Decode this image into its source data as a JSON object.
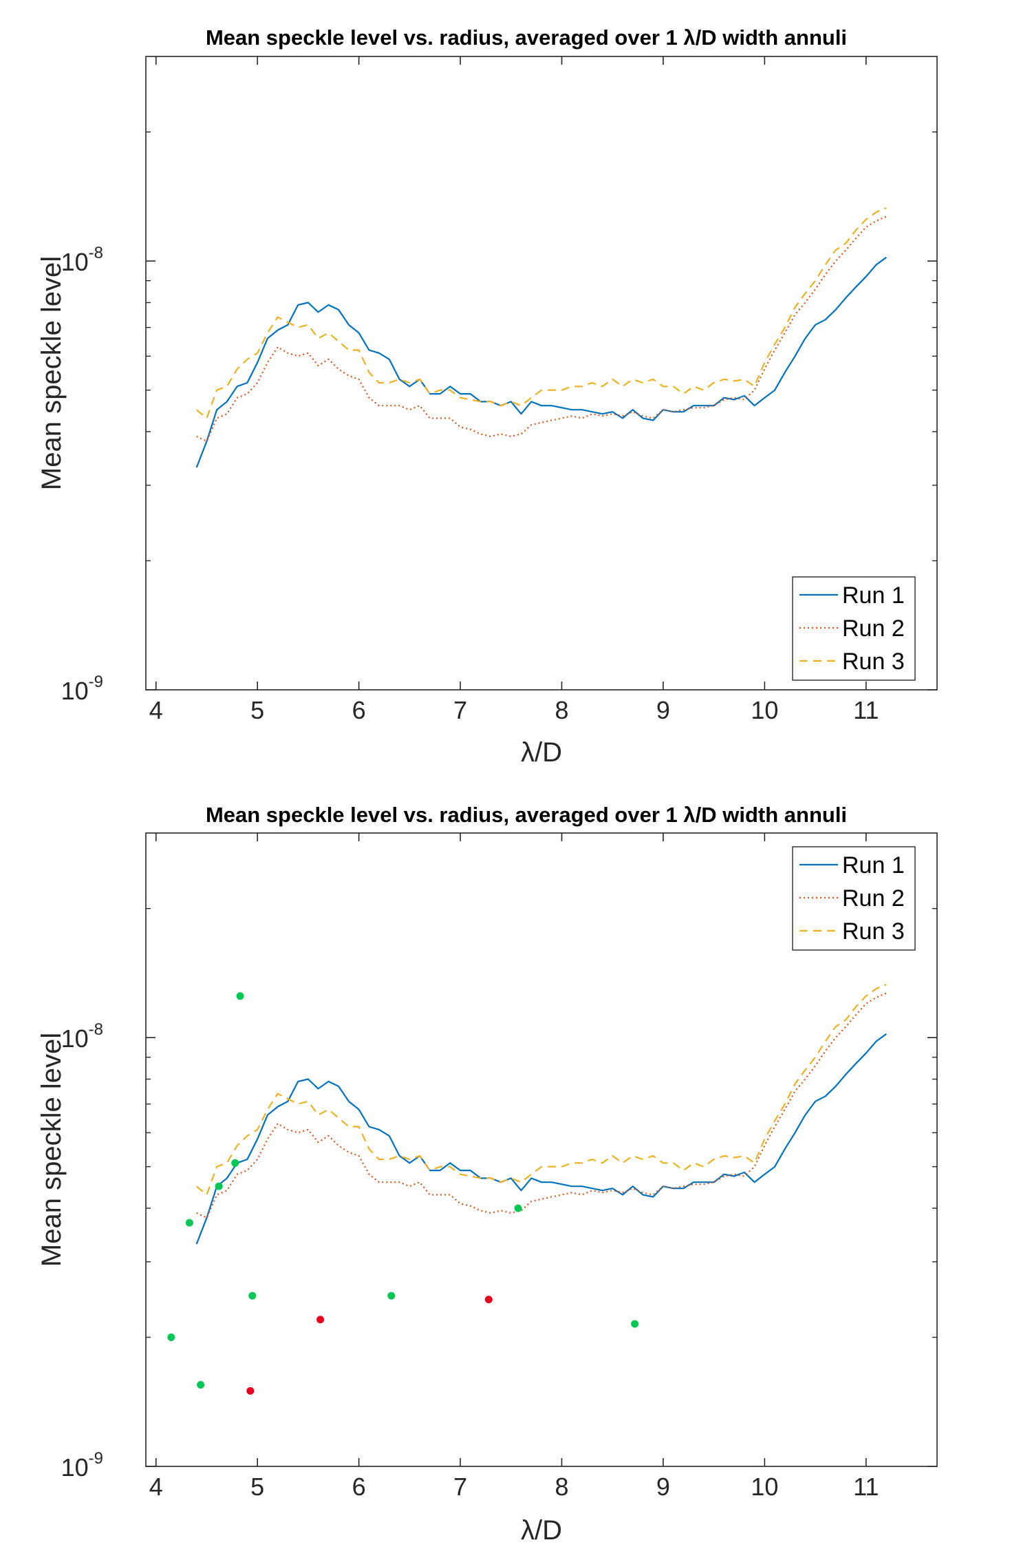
{
  "colors": {
    "run1": "#0072BD",
    "run2": "#D95319",
    "run3": "#EDB120",
    "dot_green": "#00C853",
    "dot_red": "#E8001C",
    "axis": "#262626"
  },
  "chart_data": [
    {
      "type": "line",
      "title": "Mean speckle level vs. radius, averaged over 1 λ/D width annuli",
      "xlabel": "λ/D",
      "ylabel": "Mean speckle level",
      "xlim": [
        3.9,
        11.7
      ],
      "ylim": [
        1e-09,
        3e-08
      ],
      "yscale": "log",
      "xticks": [
        4,
        5,
        6,
        7,
        8,
        9,
        10,
        11
      ],
      "xtick_labels": [
        "4",
        "5",
        "6",
        "7",
        "8",
        "9",
        "10",
        "11"
      ],
      "ytick_labels": [
        {
          "base": "10",
          "exp": "-9",
          "value": 1e-09
        },
        {
          "base": "10",
          "exp": "-8",
          "value": 1e-08
        }
      ],
      "legend_loc": "bottom-right",
      "series": [
        {
          "name": "Run 1",
          "style": "solid",
          "x": [
            4.4,
            4.5,
            4.6,
            4.7,
            4.8,
            4.9,
            5.0,
            5.1,
            5.2,
            5.3,
            5.4,
            5.5,
            5.6,
            5.7,
            5.8,
            5.9,
            6.0,
            6.1,
            6.2,
            6.3,
            6.4,
            6.5,
            6.6,
            6.7,
            6.8,
            6.9,
            7.0,
            7.1,
            7.2,
            7.3,
            7.4,
            7.5,
            7.6,
            7.7,
            7.8,
            7.9,
            8.0,
            8.1,
            8.2,
            8.3,
            8.4,
            8.5,
            8.6,
            8.7,
            8.8,
            8.9,
            9.0,
            9.1,
            9.2,
            9.3,
            9.4,
            9.5,
            9.6,
            9.7,
            9.8,
            9.9,
            10.0,
            10.1,
            10.2,
            10.3,
            10.4,
            10.5,
            10.6,
            10.7,
            10.8,
            10.9,
            11.0,
            11.1,
            11.2
          ],
          "y": [
            3.3e-09,
            3.8e-09,
            4.5e-09,
            4.7e-09,
            5.1e-09,
            5.2e-09,
            5.8e-09,
            6.6e-09,
            6.9e-09,
            7.1e-09,
            7.9e-09,
            8e-09,
            7.6e-09,
            7.9e-09,
            7.7e-09,
            7.1e-09,
            6.8e-09,
            6.2e-09,
            6.1e-09,
            5.9e-09,
            5.3e-09,
            5.1e-09,
            5.3e-09,
            4.9e-09,
            4.9e-09,
            5.1e-09,
            4.9e-09,
            4.9e-09,
            4.7e-09,
            4.7e-09,
            4.6e-09,
            4.7e-09,
            4.4e-09,
            4.7e-09,
            4.6e-09,
            4.6e-09,
            4.55e-09,
            4.5e-09,
            4.5e-09,
            4.45e-09,
            4.4e-09,
            4.45e-09,
            4.3e-09,
            4.5e-09,
            4.3e-09,
            4.25e-09,
            4.5e-09,
            4.45e-09,
            4.45e-09,
            4.6e-09,
            4.6e-09,
            4.6e-09,
            4.8e-09,
            4.75e-09,
            4.85e-09,
            4.6e-09,
            4.8e-09,
            5e-09,
            5.5e-09,
            6e-09,
            6.6e-09,
            7.1e-09,
            7.3e-09,
            7.7e-09,
            8.2e-09,
            8.7e-09,
            9.2e-09,
            9.8e-09,
            1.02e-08
          ]
        },
        {
          "name": "Run 2",
          "style": "dotted",
          "x": [
            4.4,
            4.5,
            4.6,
            4.7,
            4.8,
            4.9,
            5.0,
            5.1,
            5.2,
            5.3,
            5.4,
            5.5,
            5.6,
            5.7,
            5.8,
            5.9,
            6.0,
            6.1,
            6.2,
            6.3,
            6.4,
            6.5,
            6.6,
            6.7,
            6.8,
            6.9,
            7.0,
            7.1,
            7.2,
            7.3,
            7.4,
            7.5,
            7.6,
            7.7,
            7.8,
            7.9,
            8.0,
            8.1,
            8.2,
            8.3,
            8.4,
            8.5,
            8.6,
            8.7,
            8.8,
            8.9,
            9.0,
            9.1,
            9.2,
            9.3,
            9.4,
            9.5,
            9.6,
            9.7,
            9.8,
            9.9,
            10.0,
            10.1,
            10.2,
            10.3,
            10.4,
            10.5,
            10.6,
            10.7,
            10.8,
            10.9,
            11.0,
            11.1,
            11.2
          ],
          "y": [
            3.9e-09,
            3.8e-09,
            4.3e-09,
            4.4e-09,
            4.8e-09,
            4.9e-09,
            5.2e-09,
            5.8e-09,
            6.3e-09,
            6.1e-09,
            6e-09,
            6.1e-09,
            5.7e-09,
            5.9e-09,
            5.6e-09,
            5.4e-09,
            5.3e-09,
            4.8e-09,
            4.6e-09,
            4.6e-09,
            4.6e-09,
            4.5e-09,
            4.6e-09,
            4.3e-09,
            4.3e-09,
            4.3e-09,
            4.1e-09,
            4.05e-09,
            3.95e-09,
            3.9e-09,
            3.95e-09,
            3.9e-09,
            3.95e-09,
            4.15e-09,
            4.2e-09,
            4.25e-09,
            4.3e-09,
            4.35e-09,
            4.3e-09,
            4.4e-09,
            4.35e-09,
            4.4e-09,
            4.35e-09,
            4.45e-09,
            4.35e-09,
            4.3e-09,
            4.5e-09,
            4.45e-09,
            4.5e-09,
            4.55e-09,
            4.55e-09,
            4.6e-09,
            4.75e-09,
            4.8e-09,
            4.75e-09,
            5e-09,
            5.6e-09,
            6.2e-09,
            6.8e-09,
            7.5e-09,
            8e-09,
            8.6e-09,
            9.3e-09,
            1e-08,
            1.06e-08,
            1.13e-08,
            1.2e-08,
            1.24e-08,
            1.27e-08
          ]
        },
        {
          "name": "Run 3",
          "style": "dashed",
          "x": [
            4.4,
            4.5,
            4.6,
            4.7,
            4.8,
            4.9,
            5.0,
            5.1,
            5.2,
            5.3,
            5.4,
            5.5,
            5.6,
            5.7,
            5.8,
            5.9,
            6.0,
            6.1,
            6.2,
            6.3,
            6.4,
            6.5,
            6.6,
            6.7,
            6.8,
            6.9,
            7.0,
            7.1,
            7.2,
            7.3,
            7.4,
            7.5,
            7.6,
            7.7,
            7.8,
            7.9,
            8.0,
            8.1,
            8.2,
            8.3,
            8.4,
            8.5,
            8.6,
            8.7,
            8.8,
            8.9,
            9.0,
            9.1,
            9.2,
            9.3,
            9.4,
            9.5,
            9.6,
            9.7,
            9.8,
            9.9,
            10.0,
            10.1,
            10.2,
            10.3,
            10.4,
            10.5,
            10.6,
            10.7,
            10.8,
            10.9,
            11.0,
            11.1,
            11.2
          ],
          "y": [
            4.5e-09,
            4.3e-09,
            5e-09,
            5.1e-09,
            5.6e-09,
            5.9e-09,
            6.1e-09,
            6.8e-09,
            7.4e-09,
            7.2e-09,
            7e-09,
            7.1e-09,
            6.6e-09,
            6.8e-09,
            6.5e-09,
            6.2e-09,
            6.2e-09,
            5.5e-09,
            5.2e-09,
            5.2e-09,
            5.3e-09,
            5.2e-09,
            5.3e-09,
            4.9e-09,
            5e-09,
            5e-09,
            4.8e-09,
            4.75e-09,
            4.7e-09,
            4.7e-09,
            4.6e-09,
            4.7e-09,
            4.6e-09,
            4.8e-09,
            5e-09,
            5e-09,
            5e-09,
            5.1e-09,
            5.1e-09,
            5.2e-09,
            5.1e-09,
            5.3e-09,
            5.1e-09,
            5.3e-09,
            5.2e-09,
            5.3e-09,
            5.1e-09,
            5.1e-09,
            4.9e-09,
            5.1e-09,
            5e-09,
            5.2e-09,
            5.3e-09,
            5.25e-09,
            5.3e-09,
            5.1e-09,
            5.8e-09,
            6.4e-09,
            7e-09,
            7.8e-09,
            8.4e-09,
            9e-09,
            9.8e-09,
            1.06e-08,
            1.1e-08,
            1.18e-08,
            1.25e-08,
            1.3e-08,
            1.33e-08
          ]
        }
      ]
    },
    {
      "type": "line",
      "title": "Mean speckle level vs. radius, averaged over 1 λ/D width annuli",
      "xlabel": "λ/D",
      "ylabel": "Mean speckle level",
      "xlim": [
        3.9,
        11.7
      ],
      "ylim": [
        1e-09,
        3e-08
      ],
      "yscale": "log",
      "xticks": [
        4,
        5,
        6,
        7,
        8,
        9,
        10,
        11
      ],
      "xtick_labels": [
        "4",
        "5",
        "6",
        "7",
        "8",
        "9",
        "10",
        "11"
      ],
      "ytick_labels": [
        {
          "base": "10",
          "exp": "-9",
          "value": 1e-09
        },
        {
          "base": "10",
          "exp": "-8",
          "value": 1e-08
        }
      ],
      "legend_loc": "top-right",
      "series_same_as_chart": 0,
      "scatter": {
        "green": {
          "x": [
            4.15,
            4.33,
            4.44,
            4.62,
            4.78,
            4.83,
            4.95,
            6.32,
            7.57,
            8.72
          ],
          "y": [
            2e-09,
            3.7e-09,
            1.55e-09,
            4.5e-09,
            5.1e-09,
            1.25e-08,
            2.5e-09,
            2.5e-09,
            4e-09,
            2.15e-09
          ]
        },
        "red": {
          "x": [
            4.93,
            5.62,
            7.28
          ],
          "y": [
            1.5e-09,
            2.2e-09,
            2.45e-09
          ]
        }
      }
    }
  ]
}
